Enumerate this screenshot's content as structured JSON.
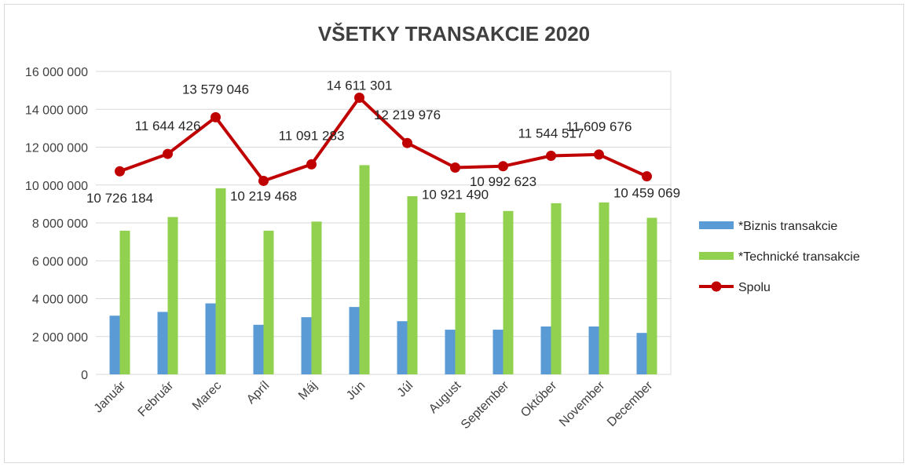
{
  "chart_data": {
    "type": "bar",
    "title": "VŠETKY TRANSAKCIE 2020",
    "xlabel": "",
    "ylabel": "",
    "ylim": [
      0,
      16000000
    ],
    "yticks": [
      0,
      2000000,
      4000000,
      6000000,
      8000000,
      10000000,
      12000000,
      14000000,
      16000000
    ],
    "ytick_labels": [
      "0",
      "2 000 000",
      "4 000 000",
      "6 000 000",
      "8 000 000",
      "10 000 000",
      "12 000 000",
      "14 000 000",
      "16 000 000"
    ],
    "grid": true,
    "legend_position": "right",
    "categories": [
      "Január",
      "Február",
      "Marec",
      "Apríl",
      "Máj",
      "Jún",
      "Júl",
      "August",
      "September",
      "Október",
      "November",
      "December"
    ],
    "series": [
      {
        "name": "*Biznis transakcie",
        "type": "bar",
        "color": "#5b9bd5",
        "values": [
          3100000,
          3300000,
          3750000,
          2620000,
          3020000,
          3560000,
          2810000,
          2360000,
          2360000,
          2530000,
          2530000,
          2190000
        ]
      },
      {
        "name": "*Technické transakcie",
        "type": "bar",
        "color": "#92d050",
        "values": [
          7590000,
          8310000,
          9830000,
          7590000,
          8070000,
          11050000,
          9410000,
          8540000,
          8630000,
          9040000,
          9080000,
          8270000
        ]
      },
      {
        "name": "Spolu",
        "type": "line",
        "color": "#c00000",
        "values": [
          10726184,
          11644426,
          13579046,
          10219468,
          11091283,
          14611301,
          12219976,
          10921490,
          10992623,
          11544517,
          11609676,
          10459069
        ],
        "labels": [
          "10 726 184",
          "11 644 426",
          "13 579 046",
          "10 219 468",
          "11 091 283",
          "14 611 301",
          "12 219 976",
          "10 921 490",
          "10 992 623",
          "11 544 517",
          "11 609 676",
          "10 459 069"
        ]
      }
    ]
  }
}
